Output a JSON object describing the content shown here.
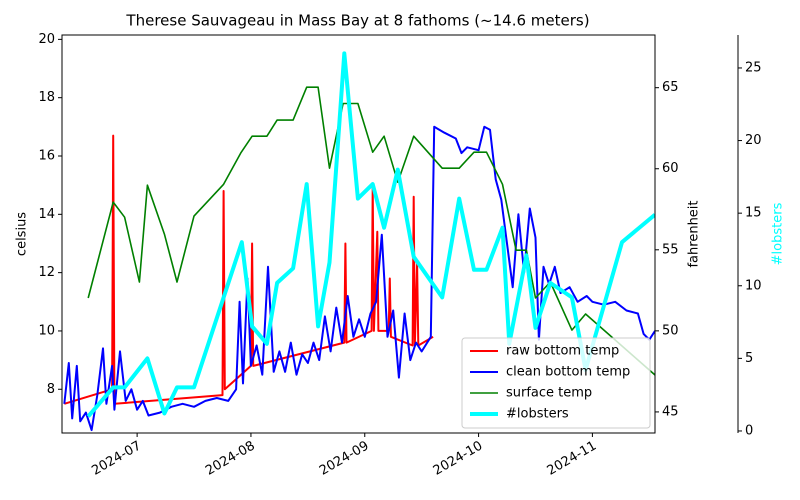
{
  "chart_data": {
    "type": "line",
    "title": "Therese Sauvageau in Mass Bay at 8 fathoms (~14.6 meters)",
    "ylabel": "celsius",
    "y2label": "fahrenheit",
    "y3label": "#lobsters",
    "y3color": "#00ffff",
    "xlim": [
      6.34,
      11.55
    ],
    "xticks": [
      {
        "value": 7,
        "label": "2024-07"
      },
      {
        "value": 8,
        "label": "2024-08"
      },
      {
        "value": 9,
        "label": "2024-09"
      },
      {
        "value": 10,
        "label": "2024-10"
      },
      {
        "value": 11,
        "label": "2024-11"
      }
    ],
    "ylim": [
      6.5,
      20.15
    ],
    "yticks": [
      8,
      10,
      12,
      14,
      16,
      18,
      20
    ],
    "y2lim": [
      43.7,
      68.25
    ],
    "y2ticks": [
      45,
      50,
      55,
      60,
      65
    ],
    "y3lim": [
      -0.14,
      27.27
    ],
    "y3ticks": [
      0,
      5,
      10,
      15,
      20,
      25
    ],
    "legend": "lower right",
    "series": [
      {
        "name": "raw bottom temp",
        "color": "#ff0000",
        "width": 2,
        "x": [
          6.36,
          6.78,
          6.79,
          6.8,
          7.75,
          7.76,
          7.77,
          8.0,
          8.01,
          8.02,
          8.82,
          8.83,
          8.84,
          9.06,
          9.07,
          9.08,
          9.11,
          9.12,
          9.21,
          9.22,
          9.23,
          9.42,
          9.43,
          9.44,
          9.46,
          9.47,
          9.6
        ],
        "values": [
          7.5,
          8.0,
          16.7,
          7.5,
          7.8,
          14.8,
          8.0,
          8.8,
          13.0,
          8.8,
          9.6,
          13.0,
          9.6,
          10.0,
          14.9,
          10.0,
          13.4,
          10.0,
          10.0,
          11.8,
          9.8,
          9.5,
          14.6,
          9.5,
          12.3,
          9.5,
          9.8
        ]
      },
      {
        "name": "clean bottom temp",
        "color": "#0000ff",
        "width": 2,
        "x": [
          6.36,
          6.4,
          6.43,
          6.47,
          6.5,
          6.55,
          6.6,
          6.65,
          6.7,
          6.73,
          6.78,
          6.8,
          6.85,
          6.9,
          6.95,
          7.0,
          7.05,
          7.1,
          7.2,
          7.3,
          7.4,
          7.5,
          7.6,
          7.7,
          7.8,
          7.87,
          7.9,
          7.93,
          7.97,
          8.0,
          8.05,
          8.1,
          8.15,
          8.2,
          8.25,
          8.3,
          8.35,
          8.4,
          8.45,
          8.5,
          8.55,
          8.6,
          8.65,
          8.7,
          8.75,
          8.8,
          8.85,
          8.9,
          8.95,
          9.0,
          9.05,
          9.1,
          9.15,
          9.2,
          9.25,
          9.3,
          9.35,
          9.4,
          9.45,
          9.5,
          9.58,
          9.61,
          9.7,
          9.8,
          9.85,
          9.9,
          10.0,
          10.05,
          10.1,
          10.15,
          10.2,
          10.25,
          10.3,
          10.35,
          10.4,
          10.45,
          10.5,
          10.53,
          10.57,
          10.62,
          10.67,
          10.72,
          10.8,
          10.87,
          10.95,
          11.0,
          11.1,
          11.2,
          11.3,
          11.4,
          11.45,
          11.5,
          11.55
        ],
        "values": [
          7.5,
          8.9,
          7.0,
          8.8,
          6.9,
          7.2,
          6.6,
          7.8,
          9.4,
          7.5,
          8.8,
          7.3,
          9.3,
          7.6,
          8.0,
          7.3,
          7.6,
          7.1,
          7.2,
          7.4,
          7.5,
          7.4,
          7.6,
          7.7,
          7.6,
          8.0,
          11.0,
          8.2,
          11.8,
          8.8,
          9.5,
          8.5,
          12.2,
          8.6,
          9.3,
          8.6,
          9.6,
          8.5,
          9.2,
          8.9,
          9.6,
          9.0,
          10.5,
          9.3,
          10.8,
          9.6,
          11.2,
          9.8,
          10.4,
          9.8,
          10.6,
          11.0,
          13.3,
          9.8,
          10.7,
          8.4,
          10.6,
          9.0,
          9.6,
          9.3,
          9.8,
          17.0,
          16.8,
          16.6,
          16.1,
          16.3,
          16.2,
          17.0,
          16.9,
          15.2,
          14.5,
          13.0,
          11.5,
          14.0,
          12.0,
          14.2,
          13.2,
          9.7,
          12.2,
          11.6,
          12.2,
          11.3,
          11.5,
          11.0,
          11.2,
          11.0,
          10.9,
          11.0,
          10.7,
          10.6,
          9.9,
          9.7,
          10.0
        ]
      },
      {
        "name": "surface temp",
        "color": "#008000",
        "width": 1.6,
        "x": [
          6.57,
          6.79,
          6.89,
          7.02,
          7.09,
          7.24,
          7.35,
          7.5,
          7.76,
          7.91,
          8.01,
          8.14,
          8.23,
          8.37,
          8.49,
          8.59,
          8.69,
          8.81,
          8.94,
          9.07,
          9.17,
          9.29,
          9.43,
          9.68,
          9.83,
          9.96,
          10.07,
          10.21,
          10.33,
          10.42,
          10.5,
          10.63,
          10.82,
          10.94,
          11.55
        ],
        "values": [
          11.13,
          14.42,
          13.9,
          11.68,
          15.0,
          13.32,
          11.68,
          13.94,
          15.03,
          16.1,
          16.68,
          16.68,
          17.23,
          17.23,
          18.36,
          18.36,
          15.58,
          17.8,
          17.8,
          16.13,
          16.68,
          15.1,
          16.68,
          15.58,
          15.58,
          16.13,
          16.13,
          15.03,
          12.77,
          12.77,
          11.13,
          11.68,
          10.03,
          10.58,
          8.49
        ]
      },
      {
        "name": "#lobsters",
        "color": "#00ffff",
        "width": 4,
        "axis": "y3",
        "x": [
          6.57,
          6.79,
          6.89,
          7.09,
          7.24,
          7.35,
          7.5,
          7.92,
          8.01,
          8.14,
          8.23,
          8.37,
          8.49,
          8.59,
          8.69,
          8.82,
          8.94,
          9.07,
          9.17,
          9.29,
          9.43,
          9.68,
          9.83,
          9.96,
          10.07,
          10.21,
          10.27,
          10.42,
          10.5,
          10.63,
          10.82,
          10.94,
          11.26,
          11.55
        ],
        "values": [
          1.0,
          3,
          3,
          5,
          1.2,
          3,
          3,
          13,
          7.2,
          6,
          10.2,
          11.2,
          17,
          7.2,
          11.6,
          26,
          16,
          17,
          14,
          18,
          12,
          9.2,
          16,
          11.1,
          11.1,
          14,
          6,
          12.1,
          7.1,
          10.2,
          9.2,
          4.2,
          13,
          14.9
        ]
      }
    ]
  }
}
